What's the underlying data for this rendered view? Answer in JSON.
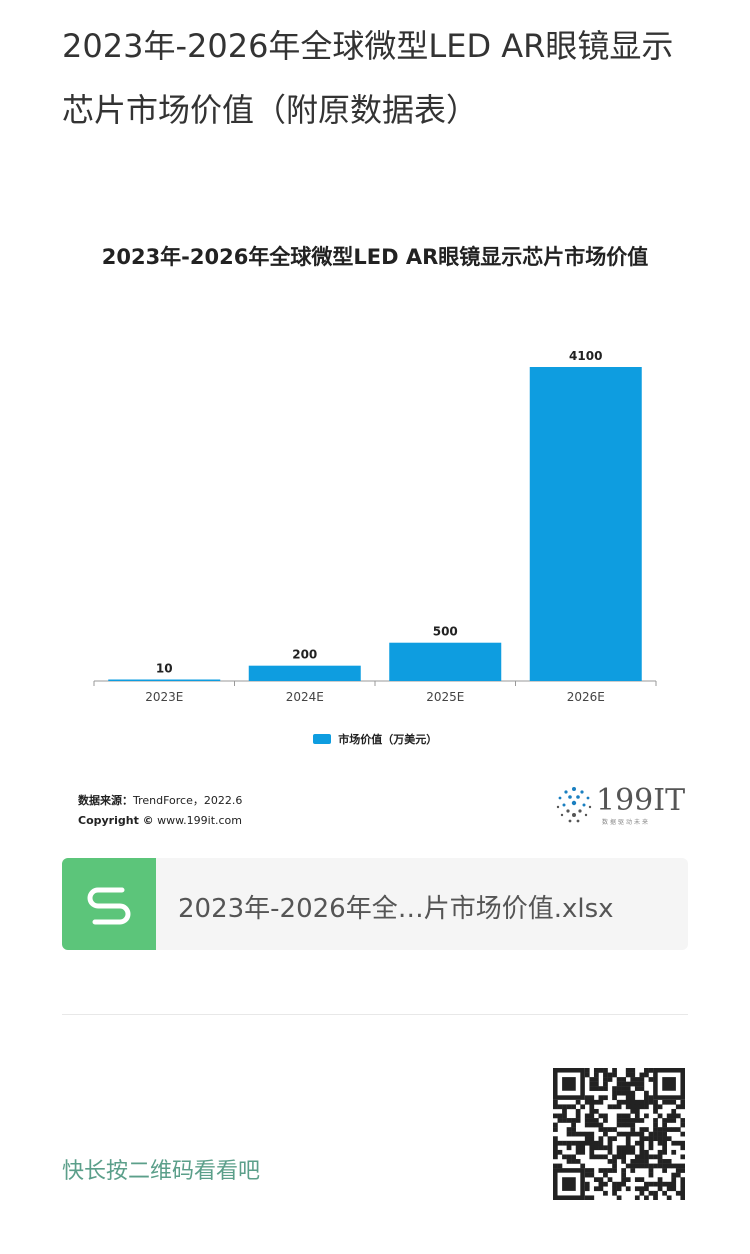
{
  "article": {
    "title": "2023年-2026年全球微型LED AR眼镜显示芯片市场价值（附原数据表）"
  },
  "chart_data": {
    "type": "bar",
    "title": "2023年-2026年全球微型LED AR眼镜显示芯片市场价值",
    "categories": [
      "2023E",
      "2024E",
      "2025E",
      "2026E"
    ],
    "series": [
      {
        "name": "市场价值（万美元）",
        "values": [
          10,
          200,
          500,
          4100
        ]
      }
    ],
    "data_labels": [
      "10",
      "200",
      "500",
      "4100"
    ],
    "ylim": [
      0,
      4100
    ],
    "grid": false,
    "legend": "bottom",
    "color": "#0e9de0"
  },
  "source": {
    "label": "数据来源：",
    "text": "TrendForce，2022.6",
    "copyright_label": "Copyright ©",
    "copyright_text": "www.199it.com"
  },
  "logo": {
    "text": "199IT",
    "tagline": "数据驱动未来"
  },
  "attachment": {
    "file_name": "2023年-2026年全…片市场价值.xlsx",
    "icon": "spreadsheet-icon"
  },
  "qr": {
    "caption": "快长按二维码看看吧",
    "icon": "qr-code-icon"
  }
}
